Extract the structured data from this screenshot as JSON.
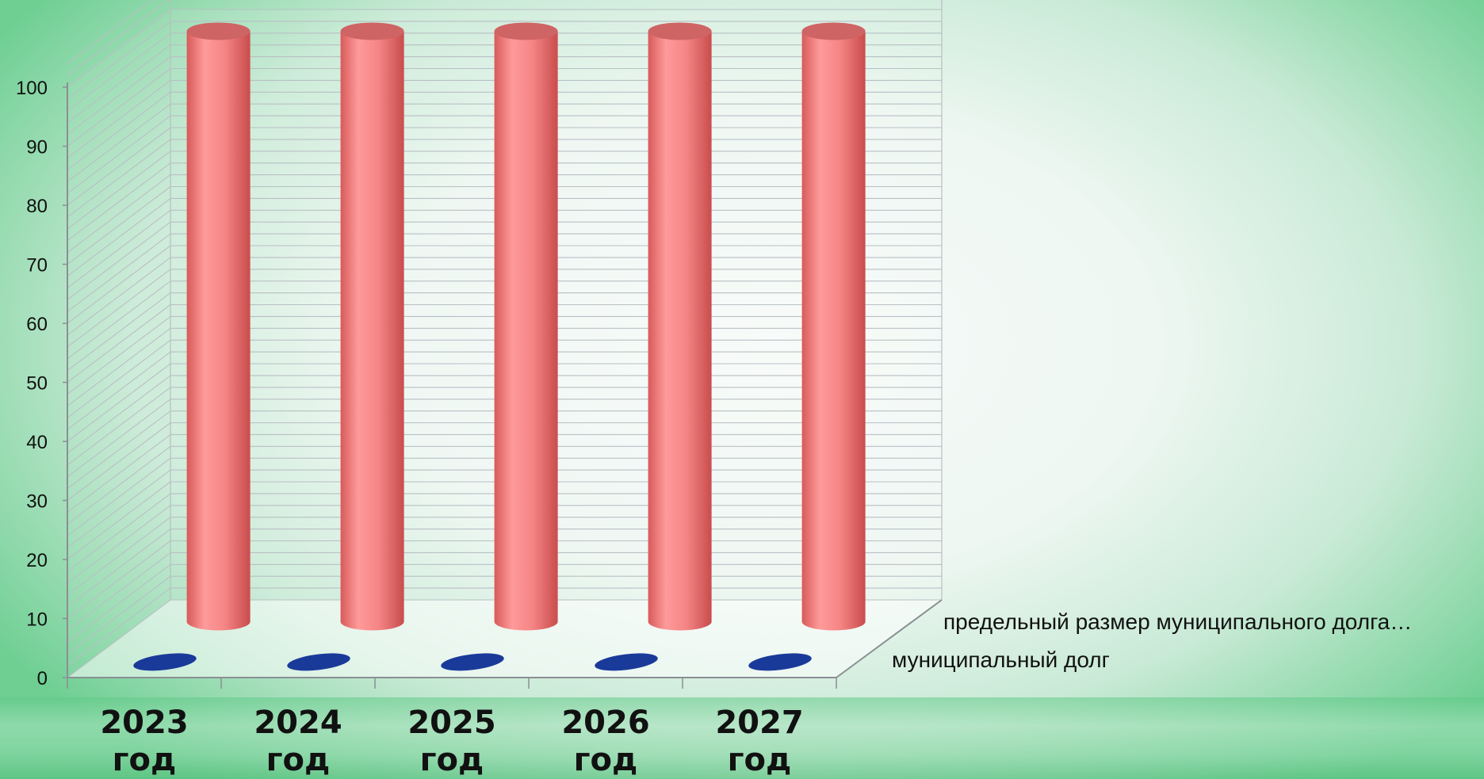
{
  "chart_data": {
    "type": "bar",
    "style": "3d-cylinder",
    "categories": [
      [
        "2023",
        "год"
      ],
      [
        "2024",
        "год"
      ],
      [
        "2025",
        "год"
      ],
      [
        "2026",
        "год"
      ],
      [
        "2027",
        "год"
      ]
    ],
    "series": [
      {
        "name": "муниципальный долг",
        "values": [
          0,
          0,
          0,
          0,
          0
        ],
        "color": "#1a3a9a"
      },
      {
        "name": "предельный размер муниципального долга…",
        "values": [
          100,
          100,
          100,
          100,
          100
        ],
        "color": "#f08a8a"
      }
    ],
    "yticks": [
      "0",
      "10",
      "20",
      "30",
      "40",
      "50",
      "60",
      "70",
      "80",
      "90",
      "100"
    ],
    "ylim": [
      0,
      100
    ],
    "grid": true
  }
}
